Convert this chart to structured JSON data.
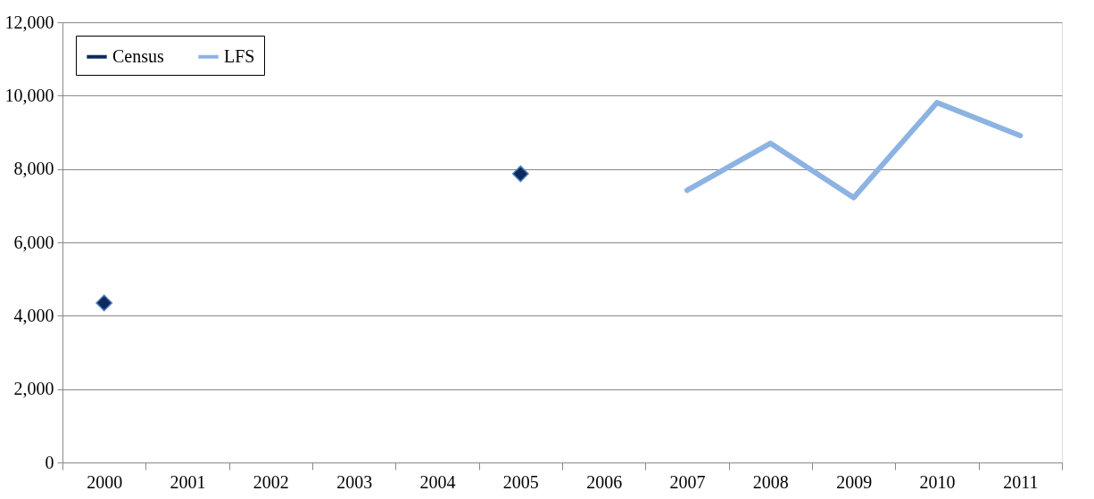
{
  "chart_data": {
    "type": "line",
    "categories": [
      "2000",
      "2001",
      "2002",
      "2003",
      "2004",
      "2005",
      "2006",
      "2007",
      "2008",
      "2009",
      "2010",
      "2011"
    ],
    "series": [
      {
        "name": "Census",
        "marker": "diamond",
        "color": "#10295e",
        "values": [
          4350,
          null,
          null,
          null,
          null,
          7870,
          null,
          null,
          null,
          null,
          null,
          null
        ]
      },
      {
        "name": "LFS",
        "marker": "none",
        "color": "#8db3e2",
        "values": [
          null,
          null,
          null,
          null,
          null,
          null,
          null,
          7420,
          8700,
          7220,
          9810,
          8910
        ]
      }
    ],
    "ylim": [
      0,
      12000
    ],
    "yticks": [
      0,
      {
        "value": 2000,
        "label": "2,000"
      },
      {
        "value": 4000,
        "label": "4,000"
      },
      {
        "value": 6000,
        "label": "6,000"
      },
      {
        "value": 8000,
        "label": "8,000"
      },
      {
        "value": 10000,
        "label": "10,000"
      },
      {
        "value": 12000,
        "label": "12,000"
      }
    ],
    "grid": "y",
    "legend": "top left",
    "line_style": "solid"
  }
}
